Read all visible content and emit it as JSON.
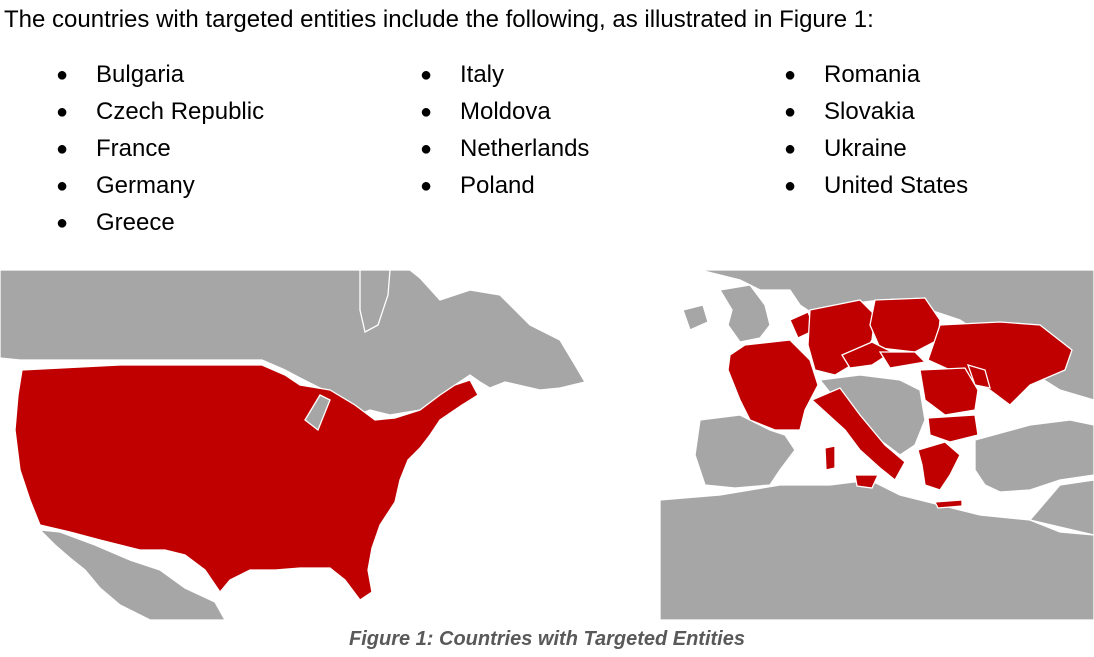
{
  "intro_text": "The countries with targeted entities include the following, as illustrated in Figure 1:",
  "bullet": "●",
  "countries": {
    "column1": [
      "Bulgaria",
      "Czech Republic",
      "France",
      "Germany",
      "Greece"
    ],
    "column2": [
      "Italy",
      "Moldova",
      "Netherlands",
      "Poland"
    ],
    "column3": [
      "Romania",
      "Slovakia",
      "Ukraine",
      "United States"
    ]
  },
  "figure": {
    "caption": "Figure 1: Countries with Targeted Entities",
    "colors": {
      "targeted": "#c00000",
      "other_land": "#a6a6a6",
      "water": "#ffffff"
    }
  }
}
